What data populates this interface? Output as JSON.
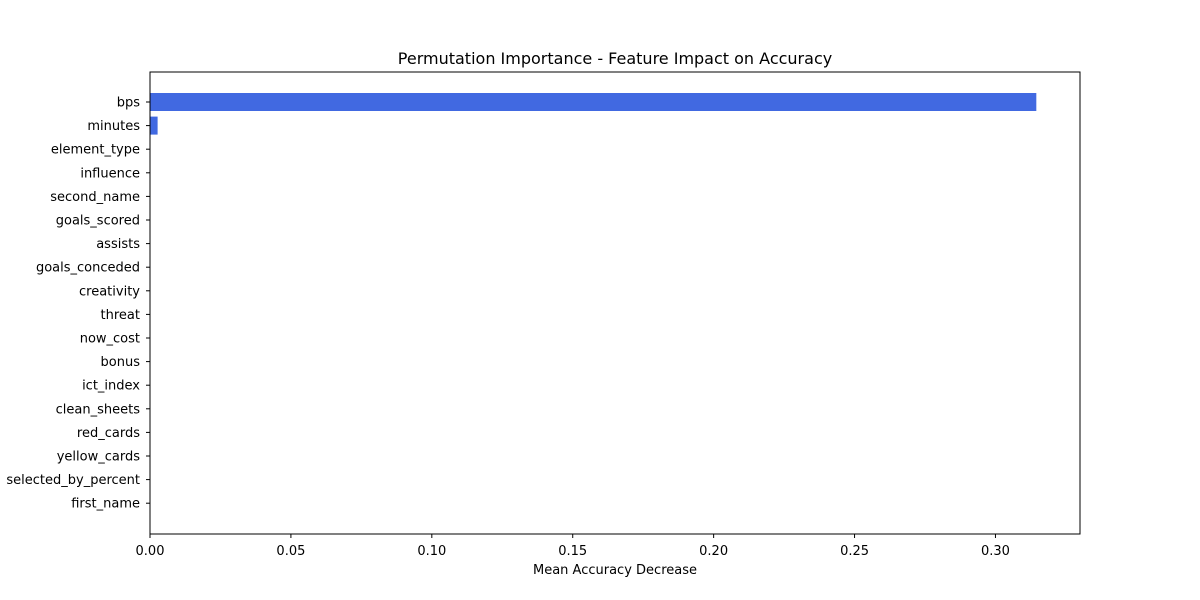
{
  "chart_data": {
    "type": "bar",
    "orientation": "horizontal",
    "title": "Permutation Importance - Feature Impact on Accuracy",
    "xlabel": "Mean Accuracy Decrease",
    "ylabel": "",
    "categories": [
      "bps",
      "minutes",
      "element_type",
      "influence",
      "second_name",
      "goals_scored",
      "assists",
      "goals_conceded",
      "creativity",
      "threat",
      "now_cost",
      "bonus",
      "ict_index",
      "clean_sheets",
      "red_cards",
      "yellow_cards",
      "selected_by_percent",
      "first_name"
    ],
    "values": [
      0.3145,
      0.0027,
      0,
      0,
      0,
      0,
      0,
      0,
      0,
      0,
      0,
      0,
      0,
      0,
      0,
      0,
      0,
      0
    ],
    "xlim": [
      0,
      0.33
    ],
    "xticks": [
      "0.00",
      "0.05",
      "0.10",
      "0.15",
      "0.20",
      "0.25",
      "0.30"
    ],
    "grid": false,
    "legend": false,
    "bar_color": "#4169e1"
  }
}
